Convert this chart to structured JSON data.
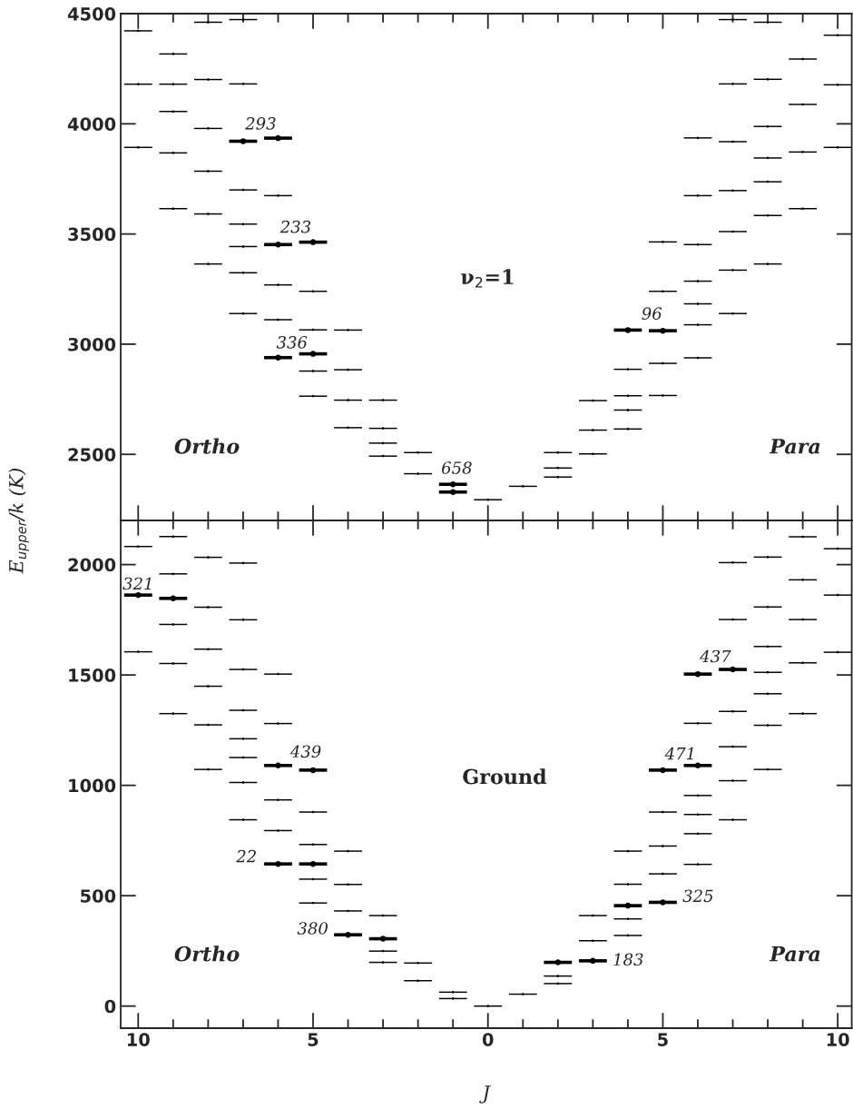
{
  "chart_data": [
    {
      "type": "scatter",
      "ylabel": "E$_{upper}$/k (K)",
      "xlim": [
        -10.5,
        10.4
      ],
      "ylim": [
        2200,
        4500
      ],
      "yticks": [
        2500,
        3000,
        3500,
        4000,
        4500
      ],
      "tick_labels": "y",
      "xticks": [
        -10,
        {
          "value": -9,
          "label": null
        },
        {
          "value": -8,
          "label": null
        },
        {
          "value": -7,
          "label": null
        },
        {
          "value": -6,
          "label": null
        },
        -5,
        {
          "value": -4,
          "label": null
        },
        {
          "value": -3,
          "label": null
        },
        {
          "value": -2,
          "label": null
        },
        {
          "value": -1,
          "label": null
        },
        0,
        {
          "value": 1,
          "label": null
        },
        {
          "value": 2,
          "label": null
        },
        {
          "value": 3,
          "label": null
        },
        {
          "value": 4,
          "label": null
        },
        5,
        {
          "value": 6,
          "label": null
        },
        {
          "value": 7,
          "label": null
        },
        {
          "value": 8,
          "label": null
        },
        {
          "value": 9,
          "label": null
        },
        10
      ],
      "series": [
        {
          "color": "#000000",
          "x": [
            -10,
            -10,
            -10,
            -9,
            -9,
            -9,
            -9,
            -9,
            -8,
            -8,
            -8,
            -8,
            -8,
            -8,
            -7,
            -7,
            -7,
            -7,
            -7,
            -7,
            -7,
            -6,
            -6,
            -6,
            -5,
            -5,
            -5,
            -5,
            -4,
            -4,
            -4,
            -4,
            -3,
            -3,
            -3,
            -3,
            -2,
            -2,
            0,
            1,
            2,
            2,
            2,
            3,
            3,
            3,
            4,
            4,
            4,
            4,
            5,
            5,
            5,
            5,
            6,
            6,
            6,
            6,
            6,
            6,
            6,
            7,
            7,
            7,
            7,
            7,
            7,
            7,
            8,
            8,
            8,
            8,
            8,
            8,
            8,
            9,
            9,
            9,
            9,
            10,
            10,
            10
          ],
          "values": [
            4422,
            4180,
            3893,
            4317,
            4180,
            4056,
            3868,
            3615,
            4461,
            4201,
            3979,
            3785,
            3591,
            3364,
            4473,
            4181,
            3700,
            3545,
            3443,
            3324,
            3139,
            3674,
            3269,
            3111,
            3240,
            3065,
            2878,
            2764,
            3064,
            2884,
            2746,
            2621,
            2746,
            2618,
            2551,
            2492,
            2508,
            2412,
            2294,
            2355,
            2508,
            2438,
            2397,
            2744,
            2610,
            2502,
            2886,
            2766,
            2701,
            2615,
            3464,
            3240,
            2913,
            2767,
            3936,
            3674,
            3452,
            3286,
            3183,
            3088,
            2938,
            4473,
            4181,
            3919,
            3697,
            3511,
            3336,
            3139,
            4461,
            4202,
            3988,
            3845,
            3737,
            3584,
            3364,
            4294,
            4088,
            3872,
            3615,
            4402,
            4177,
            3893
          ],
          "xerrors": [
            0.4,
            0.4,
            0.4,
            0.4,
            0.4,
            0.4,
            0.4,
            0.4,
            0.4,
            0.4,
            0.4,
            0.4,
            0.4,
            0.4,
            0.4,
            0.4,
            0.4,
            0.4,
            0.4,
            0.4,
            0.4,
            0.4,
            0.4,
            0.4,
            0.4,
            0.4,
            0.4,
            0.4,
            0.4,
            0.4,
            0.4,
            0.4,
            0.4,
            0.4,
            0.4,
            0.4,
            0.4,
            0.4,
            0.4,
            0.4,
            0.4,
            0.4,
            0.4,
            0.4,
            0.4,
            0.4,
            0.4,
            0.4,
            0.4,
            0.4,
            0.4,
            0.4,
            0.4,
            0.4,
            0.4,
            0.4,
            0.4,
            0.4,
            0.4,
            0.4,
            0.4,
            0.4,
            0.4,
            0.4,
            0.4,
            0.4,
            0.4,
            0.4,
            0.4,
            0.4,
            0.4,
            0.4,
            0.4,
            0.4,
            0.4,
            0.4,
            0.4,
            0.4,
            0.4,
            0.4,
            0.4,
            0.4
          ]
        },
        {
          "color": "#000000",
          "x": [
            -7,
            -6,
            -6,
            -5,
            -6,
            -5,
            -1,
            -1,
            4,
            5
          ],
          "values": [
            3921,
            3935,
            3452,
            3463,
            2939,
            2956,
            2364,
            2329,
            3064,
            3061
          ],
          "xerrors": [
            0.4,
            0.4,
            0.4,
            0.4,
            0.4,
            0.4,
            0.4,
            0.4,
            0.4,
            0.4
          ]
        }
      ],
      "annotations": [
        "ν$_{2}$=1",
        "Ortho",
        "Para",
        {
          "text": "293",
          "x": -7,
          "y": 3921
        },
        {
          "text": "233",
          "x": -6,
          "y": 3452
        },
        {
          "text": "336",
          "x": -6,
          "y": 2939
        },
        {
          "text": "658",
          "x": -1,
          "y": 2364
        },
        {
          "text": "96",
          "x": 4,
          "y": 3064
        }
      ]
    },
    {
      "type": "scatter",
      "xlabel": "J",
      "xlim": [
        -10.5,
        10.4
      ],
      "ylim": [
        -100,
        2200
      ],
      "yticks": [
        0,
        500,
        1000,
        1500,
        2000
      ],
      "xticks": [
        {
          "value": -10,
          "label": "10"
        },
        {
          "value": -9,
          "label": null
        },
        {
          "value": -8,
          "label": null
        },
        {
          "value": -7,
          "label": null
        },
        {
          "value": -6,
          "label": null
        },
        {
          "value": -5,
          "label": "5"
        },
        {
          "value": -4,
          "label": null
        },
        {
          "value": -3,
          "label": null
        },
        {
          "value": -2,
          "label": null
        },
        {
          "value": -1,
          "label": null
        },
        0,
        {
          "value": 1,
          "label": null
        },
        {
          "value": 2,
          "label": null
        },
        {
          "value": 3,
          "label": null
        },
        {
          "value": 4,
          "label": null
        },
        5,
        {
          "value": 6,
          "label": null
        },
        {
          "value": 7,
          "label": null
        },
        {
          "value": 8,
          "label": null
        },
        {
          "value": 9,
          "label": null
        },
        10
      ],
      "series": [
        {
          "color": "#000000",
          "x": [
            -10,
            -10,
            -9,
            -9,
            -9,
            -9,
            -9,
            -8,
            -8,
            -8,
            -8,
            -8,
            -8,
            -7,
            -7,
            -7,
            -7,
            -7,
            -7,
            -7,
            -7,
            -6,
            -6,
            -6,
            -6,
            -5,
            -5,
            -5,
            -5,
            -4,
            -4,
            -4,
            -3,
            -3,
            -3,
            -2,
            -2,
            -1,
            -1,
            0,
            1,
            2,
            2,
            3,
            3,
            4,
            4,
            4,
            4,
            5,
            5,
            5,
            6,
            6,
            6,
            6,
            6,
            7,
            7,
            7,
            7,
            7,
            7,
            8,
            8,
            8,
            8,
            8,
            8,
            8,
            9,
            9,
            9,
            9,
            9,
            10,
            10,
            10
          ],
          "values": [
            2082,
            1605,
            2127,
            1958,
            1729,
            1552,
            1325,
            2033,
            1807,
            1617,
            1449,
            1274,
            1072,
            2007,
            1750,
            1525,
            1340,
            1211,
            1126,
            1013,
            844,
            1504,
            1280,
            934,
            795,
            879,
            732,
            575,
            467,
            702,
            551,
            431,
            410,
            249,
            198,
            195,
            115,
            63,
            34,
            0,
            54,
            136,
            102,
            410,
            296,
            702,
            552,
            395,
            320,
            879,
            725,
            599,
            1281,
            954,
            868,
            781,
            642,
            2009,
            1751,
            1335,
            1175,
            1021,
            844,
            2034,
            1808,
            1629,
            1512,
            1415,
            1272,
            1072,
            2126,
            1931,
            1751,
            1555,
            1325,
            2072,
            1862,
            1603
          ],
          "xerrors": [
            0.4,
            0.4,
            0.4,
            0.4,
            0.4,
            0.4,
            0.4,
            0.4,
            0.4,
            0.4,
            0.4,
            0.4,
            0.4,
            0.4,
            0.4,
            0.4,
            0.4,
            0.4,
            0.4,
            0.4,
            0.4,
            0.4,
            0.4,
            0.4,
            0.4,
            0.4,
            0.4,
            0.4,
            0.4,
            0.4,
            0.4,
            0.4,
            0.4,
            0.4,
            0.4,
            0.4,
            0.4,
            0.4,
            0.4,
            0.4,
            0.4,
            0.4,
            0.4,
            0.4,
            0.4,
            0.4,
            0.4,
            0.4,
            0.4,
            0.4,
            0.4,
            0.4,
            0.4,
            0.4,
            0.4,
            0.4,
            0.4,
            0.4,
            0.4,
            0.4,
            0.4,
            0.4,
            0.4,
            0.4,
            0.4,
            0.4,
            0.4,
            0.4,
            0.4,
            0.4,
            0.4,
            0.4,
            0.4,
            0.4,
            0.4,
            0.4,
            0.4,
            0.4
          ]
        },
        {
          "color": "#000000",
          "x": [
            -10,
            -9,
            -6,
            -5,
            -6,
            -5,
            -4,
            -3,
            2,
            3,
            4,
            5,
            5,
            6,
            6,
            7
          ],
          "values": [
            1862,
            1847,
            1090,
            1069,
            644,
            644,
            323,
            305,
            198,
            205,
            455,
            470,
            1069,
            1090,
            1504,
            1525
          ],
          "xerrors": [
            0.4,
            0.4,
            0.4,
            0.4,
            0.4,
            0.4,
            0.4,
            0.4,
            0.4,
            0.4,
            0.4,
            0.4,
            0.4,
            0.4,
            0.4,
            0.4
          ]
        }
      ],
      "annotations": [
        "Ground",
        "Ortho",
        "Para",
        {
          "text": "321",
          "x": -10,
          "y": 1862
        },
        {
          "text": "439",
          "x": -6,
          "y": 1090
        },
        {
          "text": "22",
          "x": -6,
          "y": 644
        },
        {
          "text": "380",
          "x": -4,
          "y": 323
        },
        {
          "text": "183",
          "x": 3,
          "y": 205
        },
        {
          "text": "325",
          "x": 5,
          "y": 470
        },
        {
          "text": "471",
          "x": 5,
          "y": 1069
        },
        {
          "text": "437",
          "x": 6,
          "y": 1504
        }
      ]
    }
  ]
}
